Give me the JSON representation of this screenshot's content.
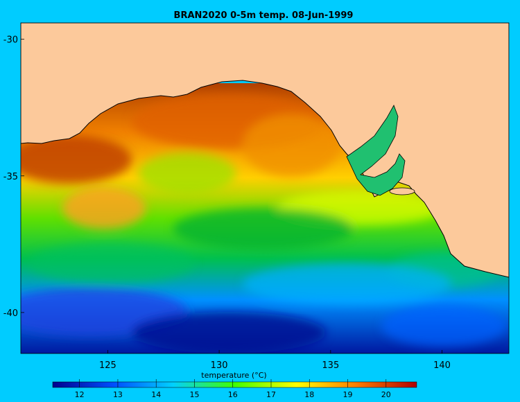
{
  "title": "BRAN2020 0-5m temp. 08-Jun-1999",
  "map": {
    "lon_range": [
      121.1,
      143.0
    ],
    "lat_range": [
      -41.5,
      -29.4
    ],
    "lon_ticks": [
      125,
      130,
      135,
      140
    ],
    "lat_ticks": [
      -30,
      -35,
      -40
    ],
    "lon_tick_labels": [
      "125",
      "130",
      "135",
      "140"
    ],
    "lat_tick_labels": [
      "-30",
      "-35",
      "-40"
    ],
    "land_color": "#fcc99b",
    "background_color": "#00ccff"
  },
  "colorbar": {
    "label": "temperature (°C)",
    "range": [
      11.3,
      20.8
    ],
    "ticks": [
      12,
      13,
      14,
      15,
      16,
      17,
      18,
      19,
      20
    ],
    "tick_labels": [
      "12",
      "13",
      "14",
      "15",
      "16",
      "17",
      "18",
      "19",
      "20"
    ],
    "colormap": [
      "#00008f",
      "#0050ff",
      "#00d0ff",
      "#40ff00",
      "#ffff00",
      "#ff8000",
      "#b00000"
    ]
  }
}
